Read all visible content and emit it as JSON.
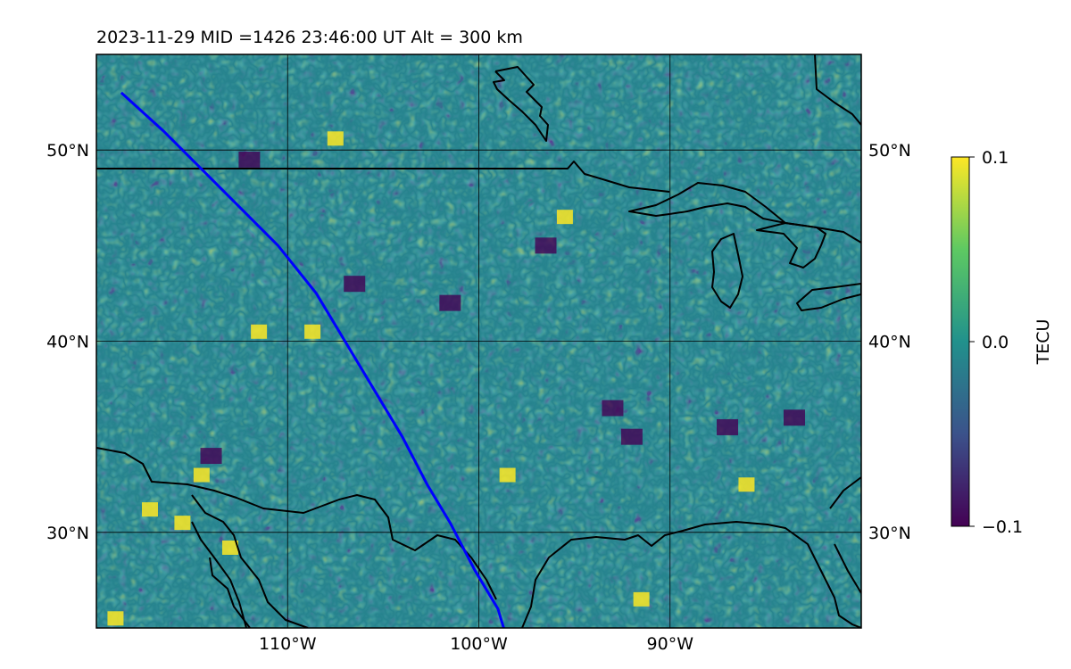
{
  "header": {
    "title": "2023-11-29  MID =1426    23:46:00  UT  Alt = 300 km"
  },
  "map": {
    "projection": "equirectangular",
    "lon_range": [
      -120,
      -80
    ],
    "lat_range": [
      25,
      55
    ],
    "lon_ticks": [
      {
        "value": -110,
        "label": "110°W"
      },
      {
        "value": -100,
        "label": "100°W"
      },
      {
        "value": -90,
        "label": "90°W"
      }
    ],
    "lat_ticks": [
      {
        "value": 30,
        "label": "30°N"
      },
      {
        "value": 40,
        "label": "40°N"
      },
      {
        "value": 50,
        "label": "50°N"
      }
    ],
    "gridlines": true,
    "coastline_color": "#000000",
    "track_color": "#0000ff",
    "track": {
      "lon": [
        -118.7,
        -116.5,
        -114.5,
        -112.5,
        -110.5,
        -108.5,
        -107.0,
        -105.5,
        -104.0,
        -102.7,
        -101.5,
        -100.2,
        -99.0,
        -98.7
      ],
      "lat": [
        53.0,
        51.0,
        49.0,
        47.0,
        45.0,
        42.5,
        40.0,
        37.5,
        35.0,
        32.5,
        30.5,
        28.0,
        26.0,
        25.0
      ]
    },
    "field_anomalies": {
      "positive": [
        {
          "lon": -107.5,
          "lat": 50.6
        },
        {
          "lon": -117.2,
          "lat": 31.2
        },
        {
          "lon": -115.5,
          "lat": 30.5
        },
        {
          "lon": -113.0,
          "lat": 29.2
        },
        {
          "lon": -114.5,
          "lat": 33.0
        },
        {
          "lon": -98.5,
          "lat": 33.0
        },
        {
          "lon": -95.5,
          "lat": 46.5
        },
        {
          "lon": -86.0,
          "lat": 32.5
        },
        {
          "lon": -91.5,
          "lat": 26.5
        },
        {
          "lon": -119.0,
          "lat": 25.5
        },
        {
          "lon": -111.5,
          "lat": 40.5
        },
        {
          "lon": -108.7,
          "lat": 40.5
        }
      ],
      "negative": [
        {
          "lon": -96.5,
          "lat": 45.0
        },
        {
          "lon": -106.5,
          "lat": 43.0
        },
        {
          "lon": -101.5,
          "lat": 42.0
        },
        {
          "lon": -93.0,
          "lat": 36.5
        },
        {
          "lon": -92.0,
          "lat": 35.0
        },
        {
          "lon": -114.0,
          "lat": 34.0
        },
        {
          "lon": -112.0,
          "lat": 49.5
        },
        {
          "lon": -87.0,
          "lat": 35.5
        },
        {
          "lon": -83.5,
          "lat": 36.0
        }
      ]
    }
  },
  "colorbar": {
    "label": "TECU",
    "min": -0.1,
    "max": 0.1,
    "ticks": [
      {
        "value": 0.1,
        "label": "0.1"
      },
      {
        "value": 0.0,
        "label": "0.0"
      },
      {
        "value": -0.1,
        "label": "−0.1"
      }
    ],
    "colormap": [
      "#440154",
      "#3b528b",
      "#21918c",
      "#5ec962",
      "#fde725"
    ]
  }
}
